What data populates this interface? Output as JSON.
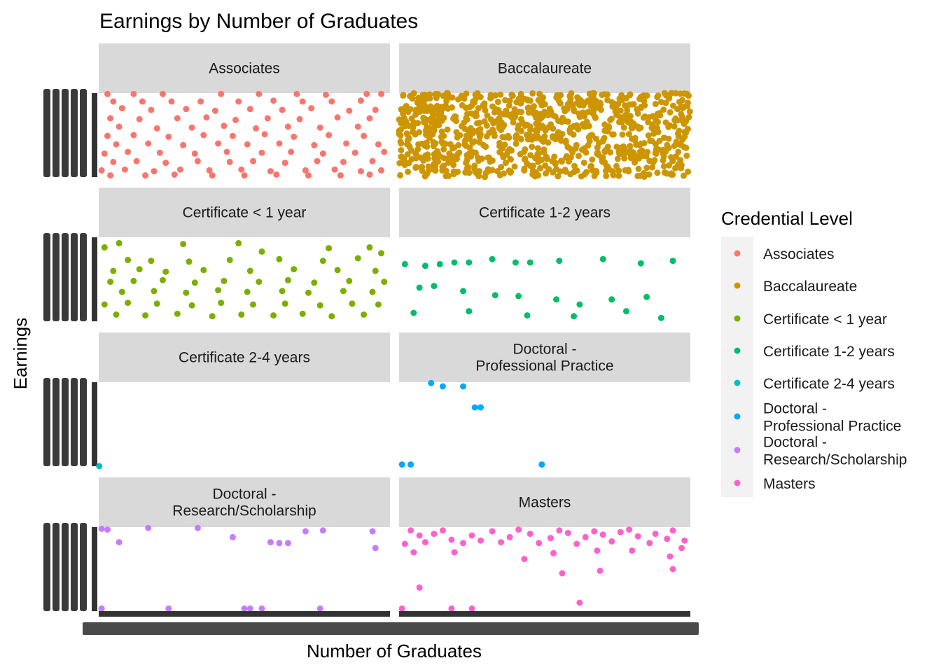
{
  "chart_data": {
    "type": "scatter",
    "title": "Earnings by Number of Graduates",
    "xlabel": "Number of Graduates",
    "ylabel": "Earnings",
    "facets": [
      {
        "label": [
          "Associates"
        ],
        "series": "Associates",
        "points": [
          [
            0.03,
            0.99
          ],
          [
            0.12,
            0.99
          ],
          [
            0.22,
            0.99
          ],
          [
            0.42,
            0.99
          ],
          [
            0.55,
            0.99
          ],
          [
            0.68,
            0.99
          ],
          [
            0.78,
            0.98
          ],
          [
            0.92,
            0.99
          ],
          [
            0.97,
            0.99
          ],
          [
            0.05,
            0.9
          ],
          [
            0.15,
            0.9
          ],
          [
            0.25,
            0.9
          ],
          [
            0.35,
            0.9
          ],
          [
            0.48,
            0.9
          ],
          [
            0.6,
            0.91
          ],
          [
            0.7,
            0.9
          ],
          [
            0.8,
            0.9
          ],
          [
            0.9,
            0.91
          ],
          [
            0.08,
            0.82
          ],
          [
            0.18,
            0.8
          ],
          [
            0.3,
            0.81
          ],
          [
            0.4,
            0.79
          ],
          [
            0.52,
            0.81
          ],
          [
            0.63,
            0.8
          ],
          [
            0.73,
            0.82
          ],
          [
            0.86,
            0.79
          ],
          [
            0.95,
            0.8
          ],
          [
            0.04,
            0.7
          ],
          [
            0.14,
            0.69
          ],
          [
            0.27,
            0.7
          ],
          [
            0.37,
            0.71
          ],
          [
            0.47,
            0.68
          ],
          [
            0.58,
            0.7
          ],
          [
            0.69,
            0.69
          ],
          [
            0.82,
            0.71
          ],
          [
            0.93,
            0.7
          ],
          [
            0.07,
            0.6
          ],
          [
            0.2,
            0.58
          ],
          [
            0.32,
            0.59
          ],
          [
            0.43,
            0.61
          ],
          [
            0.54,
            0.58
          ],
          [
            0.65,
            0.6
          ],
          [
            0.76,
            0.59
          ],
          [
            0.89,
            0.6
          ],
          [
            0.03,
            0.49
          ],
          [
            0.12,
            0.5
          ],
          [
            0.24,
            0.48
          ],
          [
            0.36,
            0.5
          ],
          [
            0.46,
            0.49
          ],
          [
            0.57,
            0.51
          ],
          [
            0.67,
            0.48
          ],
          [
            0.79,
            0.5
          ],
          [
            0.91,
            0.49
          ],
          [
            0.06,
            0.39
          ],
          [
            0.17,
            0.4
          ],
          [
            0.29,
            0.38
          ],
          [
            0.41,
            0.4
          ],
          [
            0.51,
            0.39
          ],
          [
            0.62,
            0.4
          ],
          [
            0.74,
            0.38
          ],
          [
            0.85,
            0.4
          ],
          [
            0.96,
            0.39
          ],
          [
            0.02,
            0.28
          ],
          [
            0.1,
            0.3
          ],
          [
            0.21,
            0.29
          ],
          [
            0.33,
            0.28
          ],
          [
            0.44,
            0.3
          ],
          [
            0.56,
            0.29
          ],
          [
            0.66,
            0.3
          ],
          [
            0.77,
            0.28
          ],
          [
            0.88,
            0.29
          ],
          [
            0.98,
            0.3
          ],
          [
            0.05,
            0.18
          ],
          [
            0.13,
            0.19
          ],
          [
            0.23,
            0.17
          ],
          [
            0.34,
            0.19
          ],
          [
            0.45,
            0.18
          ],
          [
            0.53,
            0.19
          ],
          [
            0.64,
            0.17
          ],
          [
            0.75,
            0.19
          ],
          [
            0.84,
            0.18
          ],
          [
            0.94,
            0.19
          ],
          [
            0.01,
            0.08
          ],
          [
            0.09,
            0.09
          ],
          [
            0.19,
            0.07
          ],
          [
            0.28,
            0.09
          ],
          [
            0.38,
            0.08
          ],
          [
            0.49,
            0.09
          ],
          [
            0.59,
            0.07
          ],
          [
            0.71,
            0.08
          ],
          [
            0.81,
            0.09
          ],
          [
            0.9,
            0.07
          ],
          [
            0.97,
            0.08
          ],
          [
            0.04,
            0.02
          ],
          [
            0.16,
            0.02
          ],
          [
            0.26,
            0.03
          ],
          [
            0.39,
            0.02
          ],
          [
            0.5,
            0.02
          ],
          [
            0.61,
            0.03
          ],
          [
            0.72,
            0.02
          ],
          [
            0.83,
            0.02
          ],
          [
            0.93,
            0.03
          ]
        ]
      },
      {
        "label": [
          "Baccalaureate"
        ],
        "series": "Baccalaureate",
        "dense": true,
        "points": []
      },
      {
        "label": [
          "Certificate < 1 year"
        ],
        "series": "Certificate < 1 year",
        "points": [
          [
            0.02,
            0.88
          ],
          [
            0.07,
            0.93
          ],
          [
            0.29,
            0.92
          ],
          [
            0.48,
            0.93
          ],
          [
            0.56,
            0.83
          ],
          [
            0.79,
            0.87
          ],
          [
            0.93,
            0.88
          ],
          [
            0.97,
            0.81
          ],
          [
            0.1,
            0.73
          ],
          [
            0.18,
            0.72
          ],
          [
            0.31,
            0.71
          ],
          [
            0.45,
            0.73
          ],
          [
            0.62,
            0.74
          ],
          [
            0.77,
            0.72
          ],
          [
            0.89,
            0.75
          ],
          [
            0.05,
            0.6
          ],
          [
            0.14,
            0.62
          ],
          [
            0.23,
            0.59
          ],
          [
            0.36,
            0.61
          ],
          [
            0.52,
            0.6
          ],
          [
            0.67,
            0.62
          ],
          [
            0.82,
            0.61
          ],
          [
            0.95,
            0.6
          ],
          [
            0.04,
            0.47
          ],
          [
            0.12,
            0.48
          ],
          [
            0.22,
            0.49
          ],
          [
            0.33,
            0.46
          ],
          [
            0.43,
            0.48
          ],
          [
            0.55,
            0.47
          ],
          [
            0.65,
            0.49
          ],
          [
            0.74,
            0.46
          ],
          [
            0.86,
            0.48
          ],
          [
            0.98,
            0.47
          ],
          [
            0.08,
            0.35
          ],
          [
            0.19,
            0.36
          ],
          [
            0.3,
            0.34
          ],
          [
            0.41,
            0.37
          ],
          [
            0.51,
            0.35
          ],
          [
            0.63,
            0.36
          ],
          [
            0.72,
            0.34
          ],
          [
            0.84,
            0.36
          ],
          [
            0.94,
            0.35
          ],
          [
            0.02,
            0.2
          ],
          [
            0.1,
            0.22
          ],
          [
            0.2,
            0.21
          ],
          [
            0.32,
            0.19
          ],
          [
            0.42,
            0.22
          ],
          [
            0.53,
            0.2
          ],
          [
            0.64,
            0.21
          ],
          [
            0.76,
            0.19
          ],
          [
            0.87,
            0.21
          ],
          [
            0.96,
            0.2
          ],
          [
            0.06,
            0.08
          ],
          [
            0.16,
            0.07
          ],
          [
            0.27,
            0.09
          ],
          [
            0.39,
            0.06
          ],
          [
            0.49,
            0.08
          ],
          [
            0.6,
            0.07
          ],
          [
            0.7,
            0.09
          ],
          [
            0.8,
            0.06
          ],
          [
            0.91,
            0.08
          ]
        ]
      },
      {
        "label": [
          "Certificate 1-2 years"
        ],
        "series": "Certificate 1-2 years",
        "points": [
          [
            0.02,
            0.68
          ],
          [
            0.09,
            0.66
          ],
          [
            0.14,
            0.68
          ],
          [
            0.19,
            0.7
          ],
          [
            0.24,
            0.7
          ],
          [
            0.32,
            0.74
          ],
          [
            0.4,
            0.7
          ],
          [
            0.45,
            0.7
          ],
          [
            0.55,
            0.72
          ],
          [
            0.7,
            0.74
          ],
          [
            0.83,
            0.69
          ],
          [
            0.94,
            0.72
          ],
          [
            0.07,
            0.4
          ],
          [
            0.12,
            0.42
          ],
          [
            0.22,
            0.36
          ],
          [
            0.33,
            0.31
          ],
          [
            0.41,
            0.3
          ],
          [
            0.54,
            0.26
          ],
          [
            0.62,
            0.2
          ],
          [
            0.73,
            0.26
          ],
          [
            0.85,
            0.29
          ],
          [
            0.05,
            0.1
          ],
          [
            0.24,
            0.12
          ],
          [
            0.44,
            0.07
          ],
          [
            0.6,
            0.06
          ],
          [
            0.78,
            0.12
          ],
          [
            0.9,
            0.04
          ]
        ]
      },
      {
        "label": [
          "Certificate 2-4 years"
        ],
        "series": "Certificate 2-4 years",
        "points": [
          [
            0.002,
            0.0
          ]
        ]
      },
      {
        "label": [
          "Doctoral -",
          "Professional Practice"
        ],
        "series": "Doctoral - Professional Practice",
        "points": [
          [
            0.11,
            0.99
          ],
          [
            0.15,
            0.95
          ],
          [
            0.22,
            0.95
          ],
          [
            0.26,
            0.7
          ],
          [
            0.28,
            0.7
          ],
          [
            0.01,
            0.02
          ],
          [
            0.04,
            0.02
          ],
          [
            0.49,
            0.02
          ]
        ]
      },
      {
        "label": [
          "Doctoral -",
          "Research/Scholarship"
        ],
        "series": "Doctoral - Research/Scholarship",
        "points": [
          [
            0.01,
            0.98
          ],
          [
            0.03,
            0.97
          ],
          [
            0.17,
            0.99
          ],
          [
            0.34,
            0.99
          ],
          [
            0.07,
            0.82
          ],
          [
            0.46,
            0.88
          ],
          [
            0.59,
            0.82
          ],
          [
            0.62,
            0.81
          ],
          [
            0.65,
            0.81
          ],
          [
            0.71,
            0.95
          ],
          [
            0.77,
            0.96
          ],
          [
            0.94,
            0.95
          ],
          [
            0.95,
            0.75
          ],
          [
            0.01,
            0.03
          ],
          [
            0.24,
            0.03
          ],
          [
            0.5,
            0.03
          ],
          [
            0.52,
            0.03
          ],
          [
            0.56,
            0.03
          ],
          [
            0.76,
            0.03
          ]
        ]
      },
      {
        "label": [
          "Masters"
        ],
        "series": "Masters",
        "points": [
          [
            0.02,
            0.8
          ],
          [
            0.07,
            0.9
          ],
          [
            0.12,
            0.92
          ],
          [
            0.18,
            0.85
          ],
          [
            0.25,
            0.9
          ],
          [
            0.32,
            0.95
          ],
          [
            0.38,
            0.88
          ],
          [
            0.45,
            0.92
          ],
          [
            0.52,
            0.87
          ],
          [
            0.58,
            0.93
          ],
          [
            0.64,
            0.88
          ],
          [
            0.7,
            0.91
          ],
          [
            0.76,
            0.94
          ],
          [
            0.82,
            0.89
          ],
          [
            0.88,
            0.92
          ],
          [
            0.94,
            0.96
          ],
          [
            0.98,
            0.84
          ],
          [
            0.04,
            0.96
          ],
          [
            0.09,
            0.82
          ],
          [
            0.15,
            0.96
          ],
          [
            0.22,
            0.81
          ],
          [
            0.28,
            0.84
          ],
          [
            0.35,
            0.82
          ],
          [
            0.41,
            0.97
          ],
          [
            0.48,
            0.81
          ],
          [
            0.55,
            0.96
          ],
          [
            0.61,
            0.8
          ],
          [
            0.67,
            0.95
          ],
          [
            0.73,
            0.83
          ],
          [
            0.79,
            0.97
          ],
          [
            0.86,
            0.81
          ],
          [
            0.92,
            0.86
          ],
          [
            0.97,
            0.75
          ],
          [
            0.05,
            0.7
          ],
          [
            0.19,
            0.7
          ],
          [
            0.43,
            0.62
          ],
          [
            0.53,
            0.69
          ],
          [
            0.68,
            0.72
          ],
          [
            0.8,
            0.72
          ],
          [
            0.93,
            0.65
          ],
          [
            0.56,
            0.45
          ],
          [
            0.69,
            0.48
          ],
          [
            0.94,
            0.5
          ],
          [
            0.07,
            0.28
          ],
          [
            0.62,
            0.1
          ],
          [
            0.01,
            0.03
          ],
          [
            0.18,
            0.03
          ],
          [
            0.25,
            0.03
          ]
        ]
      }
    ],
    "legend": {
      "title": "Credential Level",
      "placement": "right",
      "entries": [
        {
          "label": [
            "Associates"
          ],
          "color": "#F8766D"
        },
        {
          "label": [
            "Baccalaureate"
          ],
          "color": "#CD9600"
        },
        {
          "label": [
            "Certificate < 1 year"
          ],
          "color": "#7CAE00"
        },
        {
          "label": [
            "Certificate 1-2 years"
          ],
          "color": "#00BE67"
        },
        {
          "label": [
            "Certificate 2-4 years"
          ],
          "color": "#00BFC4"
        },
        {
          "label": [
            "Doctoral -",
            "Professional Practice"
          ],
          "color": "#00A9FF"
        },
        {
          "label": [
            "Doctoral -",
            "Research/Scholarship"
          ],
          "color": "#C77CFF"
        },
        {
          "label": [
            "Masters"
          ],
          "color": "#FF61CC"
        }
      ]
    }
  }
}
